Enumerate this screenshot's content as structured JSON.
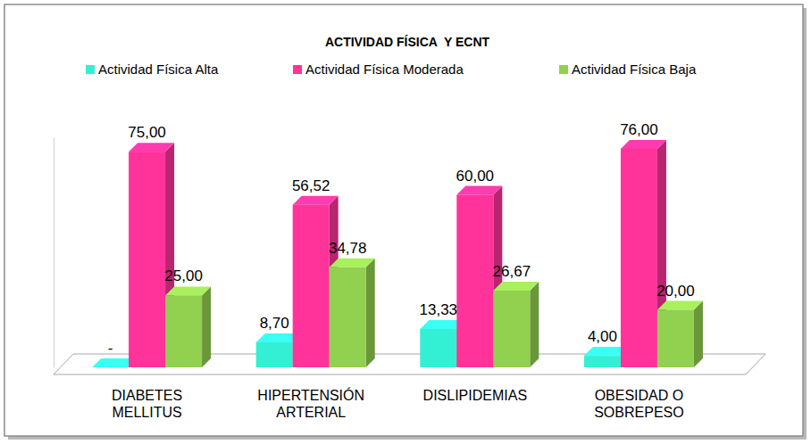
{
  "chart_data": {
    "type": "bar",
    "title": "ACTIVIDAD FÍSICA  Y ECNT",
    "categories": [
      "DIABETES\nMELLITUS",
      "HIPERTENSIÓN\nARTERIAL",
      "DISLIPIDEMIAS",
      "OBESIDAD O\nSOBREPESO"
    ],
    "series": [
      {
        "name": "Actividad Física Alta",
        "color": "#33F0D4",
        "values": [
          0,
          8.7,
          13.33,
          4
        ],
        "value_labels": [
          "-",
          "8,70",
          "13,33",
          "4,00"
        ]
      },
      {
        "name": "Actividad Física Moderada",
        "color": "#FF3399",
        "values": [
          75,
          56.52,
          60,
          76
        ],
        "value_labels": [
          "75,00",
          "56,52",
          "60,00",
          "76,00"
        ]
      },
      {
        "name": "Actividad Física Baja",
        "color": "#92D050",
        "values": [
          25,
          34.78,
          26.67,
          20
        ],
        "value_labels": [
          "25,00",
          "34,78",
          "26,67",
          "20,00"
        ]
      }
    ],
    "ylim": [
      0,
      80
    ],
    "yticks": [],
    "tick_labels": false,
    "grid": false,
    "data_labels": true,
    "legend": "top"
  }
}
